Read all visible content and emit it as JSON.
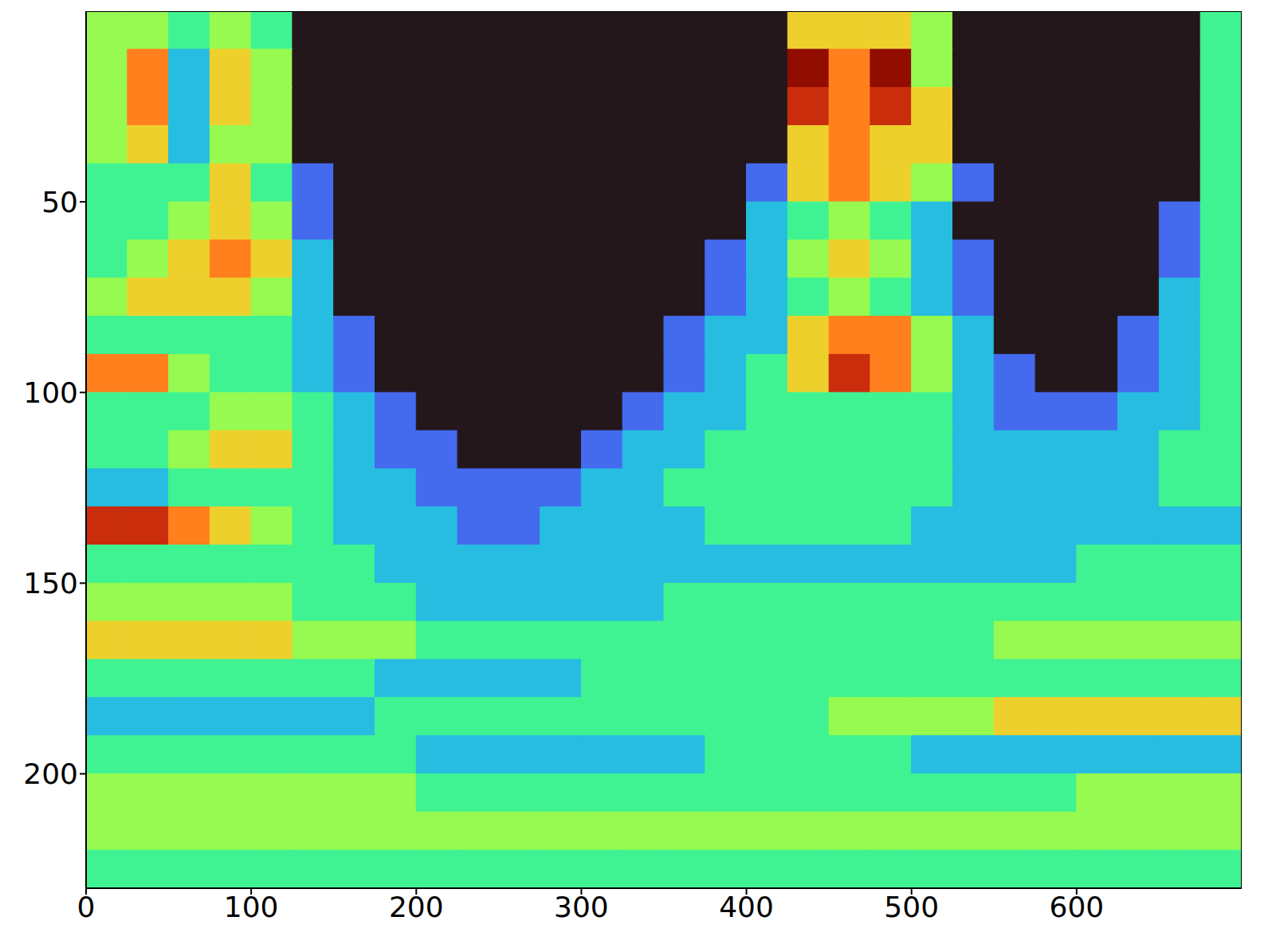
{
  "chart_data": {
    "type": "heatmap",
    "xlim": [
      0,
      700
    ],
    "ylim": [
      0,
      230
    ],
    "xticks": [
      0,
      100,
      200,
      300,
      400,
      500,
      600
    ],
    "yticks": [
      0,
      50,
      100,
      150,
      200
    ],
    "cells": [
      [
        4,
        4,
        3,
        4,
        3,
        0,
        0,
        0,
        0,
        0,
        0,
        0,
        0,
        0,
        0,
        0,
        0,
        5,
        5,
        5,
        4,
        0,
        0,
        0,
        0,
        0,
        0,
        3
      ],
      [
        4,
        6,
        2,
        5,
        4,
        0,
        0,
        0,
        0,
        0,
        0,
        0,
        0,
        0,
        0,
        0,
        0,
        8,
        6,
        8,
        4,
        0,
        0,
        0,
        0,
        0,
        0,
        3
      ],
      [
        4,
        6,
        2,
        5,
        4,
        0,
        0,
        0,
        0,
        0,
        0,
        0,
        0,
        0,
        0,
        0,
        0,
        7,
        6,
        7,
        5,
        0,
        0,
        0,
        0,
        0,
        0,
        3
      ],
      [
        4,
        5,
        2,
        4,
        4,
        0,
        0,
        0,
        0,
        0,
        0,
        0,
        0,
        0,
        0,
        0,
        0,
        5,
        6,
        5,
        5,
        0,
        0,
        0,
        0,
        0,
        0,
        3
      ],
      [
        3,
        3,
        3,
        5,
        3,
        1,
        0,
        0,
        0,
        0,
        0,
        0,
        0,
        0,
        0,
        0,
        1,
        5,
        6,
        5,
        4,
        1,
        0,
        0,
        0,
        0,
        0,
        3
      ],
      [
        3,
        3,
        4,
        5,
        4,
        1,
        0,
        0,
        0,
        0,
        0,
        0,
        0,
        0,
        0,
        0,
        2,
        3,
        4,
        3,
        2,
        0,
        0,
        0,
        0,
        0,
        1,
        3
      ],
      [
        3,
        4,
        5,
        6,
        5,
        2,
        0,
        0,
        0,
        0,
        0,
        0,
        0,
        0,
        0,
        1,
        2,
        4,
        5,
        4,
        2,
        1,
        0,
        0,
        0,
        0,
        1,
        3
      ],
      [
        4,
        5,
        5,
        5,
        4,
        2,
        0,
        0,
        0,
        0,
        0,
        0,
        0,
        0,
        0,
        1,
        2,
        3,
        4,
        3,
        2,
        1,
        0,
        0,
        0,
        0,
        2,
        3
      ],
      [
        3,
        3,
        3,
        3,
        3,
        2,
        1,
        0,
        0,
        0,
        0,
        0,
        0,
        0,
        1,
        2,
        2,
        5,
        6,
        6,
        4,
        2,
        0,
        0,
        0,
        1,
        2,
        3
      ],
      [
        6,
        6,
        4,
        3,
        3,
        2,
        1,
        0,
        0,
        0,
        0,
        0,
        0,
        0,
        1,
        2,
        3,
        5,
        7,
        6,
        4,
        2,
        1,
        0,
        0,
        1,
        2,
        3
      ],
      [
        3,
        3,
        3,
        4,
        4,
        3,
        2,
        1,
        0,
        0,
        0,
        0,
        0,
        1,
        2,
        2,
        3,
        3,
        3,
        3,
        3,
        2,
        1,
        1,
        1,
        2,
        2,
        3
      ],
      [
        3,
        3,
        4,
        5,
        5,
        3,
        2,
        1,
        1,
        0,
        0,
        0,
        1,
        2,
        2,
        3,
        3,
        3,
        3,
        3,
        3,
        2,
        2,
        2,
        2,
        2,
        3,
        3
      ],
      [
        2,
        2,
        3,
        3,
        3,
        3,
        2,
        2,
        1,
        1,
        1,
        1,
        2,
        2,
        3,
        3,
        3,
        3,
        3,
        3,
        3,
        2,
        2,
        2,
        2,
        2,
        3,
        3
      ],
      [
        7,
        7,
        6,
        5,
        4,
        3,
        2,
        2,
        2,
        1,
        1,
        2,
        2,
        2,
        2,
        3,
        3,
        3,
        3,
        3,
        2,
        2,
        2,
        2,
        2,
        2,
        2,
        2
      ],
      [
        3,
        3,
        3,
        3,
        3,
        3,
        3,
        2,
        2,
        2,
        2,
        2,
        2,
        2,
        2,
        2,
        2,
        2,
        2,
        2,
        2,
        2,
        2,
        2,
        3,
        3,
        3,
        3
      ],
      [
        4,
        4,
        4,
        4,
        4,
        3,
        3,
        3,
        2,
        2,
        2,
        2,
        2,
        2,
        3,
        3,
        3,
        3,
        3,
        3,
        3,
        3,
        3,
        3,
        3,
        3,
        3,
        3
      ],
      [
        5,
        5,
        5,
        5,
        5,
        4,
        4,
        4,
        3,
        3,
        3,
        3,
        3,
        3,
        3,
        3,
        3,
        3,
        3,
        3,
        3,
        3,
        4,
        4,
        4,
        4,
        4,
        4
      ],
      [
        3,
        3,
        3,
        3,
        3,
        3,
        3,
        2,
        2,
        2,
        2,
        2,
        3,
        3,
        3,
        3,
        3,
        3,
        3,
        3,
        3,
        3,
        3,
        3,
        3,
        3,
        3,
        3
      ],
      [
        2,
        2,
        2,
        2,
        2,
        2,
        2,
        3,
        3,
        3,
        3,
        3,
        3,
        3,
        3,
        3,
        3,
        3,
        4,
        4,
        4,
        4,
        5,
        5,
        5,
        5,
        5,
        5
      ],
      [
        3,
        3,
        3,
        3,
        3,
        3,
        3,
        3,
        2,
        2,
        2,
        2,
        2,
        2,
        2,
        3,
        3,
        3,
        3,
        3,
        2,
        2,
        2,
        2,
        2,
        2,
        2,
        2
      ],
      [
        4,
        4,
        4,
        4,
        4,
        4,
        4,
        4,
        3,
        3,
        3,
        3,
        3,
        3,
        3,
        3,
        3,
        3,
        3,
        3,
        3,
        3,
        3,
        3,
        4,
        4,
        4,
        4
      ],
      [
        4,
        4,
        4,
        4,
        4,
        4,
        4,
        4,
        4,
        4,
        4,
        4,
        4,
        4,
        4,
        4,
        4,
        4,
        4,
        4,
        4,
        4,
        4,
        4,
        4,
        4,
        4,
        4
      ],
      [
        3,
        3,
        3,
        3,
        3,
        3,
        3,
        3,
        3,
        3,
        3,
        3,
        3,
        3,
        3,
        3,
        3,
        3,
        3,
        3,
        3,
        3,
        3,
        3,
        3,
        3,
        3,
        3
      ]
    ]
  }
}
